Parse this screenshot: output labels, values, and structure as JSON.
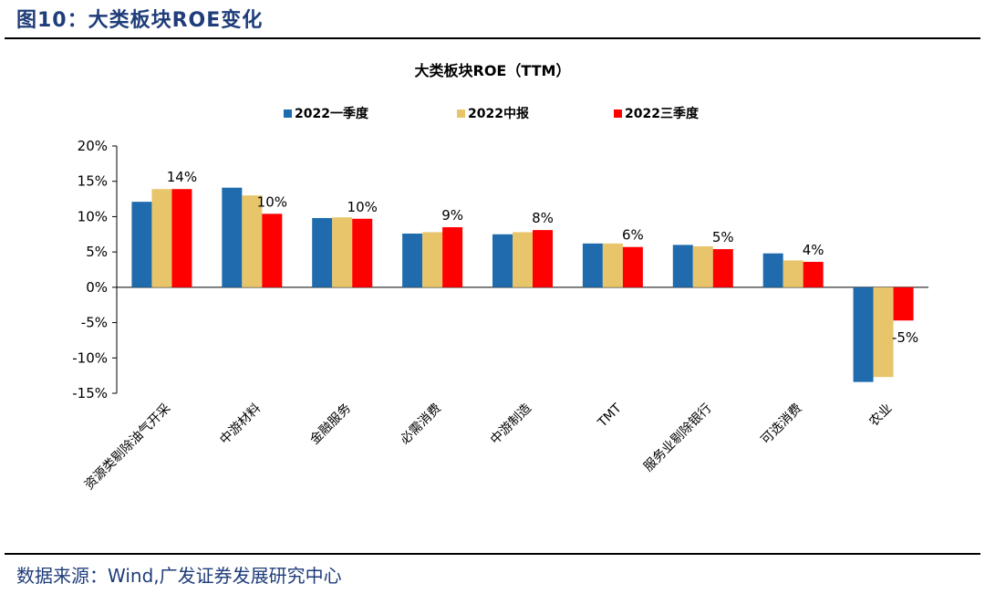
{
  "figure": {
    "caption": "图10：大类板块ROE变化",
    "source": "数据来源：Wind,广发证券发展研究中心"
  },
  "colors": {
    "series1": "#1f6bad",
    "series2": "#e8c56a",
    "series3": "#ff0000"
  },
  "chart_data": {
    "type": "bar",
    "title": "大类板块ROE（TTM）",
    "xlabel": "",
    "ylabel": "",
    "ylim": [
      -15,
      20
    ],
    "yticks": [
      "20%",
      "15%",
      "10%",
      "5%",
      "0%",
      "-5%",
      "-10%",
      "-15%"
    ],
    "ytick_values": [
      20,
      15,
      10,
      5,
      0,
      -5,
      -10,
      -15
    ],
    "legend_position": "top",
    "grid": false,
    "categories": [
      "资源类剔除油气开采",
      "中游材料",
      "金融服务",
      "必需消费",
      "中游制造",
      "TMT",
      "服务业剔除银行",
      "可选消费",
      "农业"
    ],
    "series": [
      {
        "name": "2022一季度",
        "values": [
          12.1,
          14.1,
          9.8,
          7.6,
          7.5,
          6.2,
          6.0,
          4.8,
          -13.4
        ]
      },
      {
        "name": "2022中报",
        "values": [
          13.9,
          13.0,
          9.9,
          7.8,
          7.8,
          6.2,
          5.8,
          3.8,
          -12.7
        ]
      },
      {
        "name": "2022三季度",
        "values": [
          13.9,
          10.4,
          9.7,
          8.5,
          8.1,
          5.7,
          5.4,
          3.6,
          -4.7
        ]
      }
    ],
    "data_labels": [
      "14%",
      "10%",
      "10%",
      "9%",
      "8%",
      "6%",
      "5%",
      "4%",
      "-5%"
    ]
  }
}
